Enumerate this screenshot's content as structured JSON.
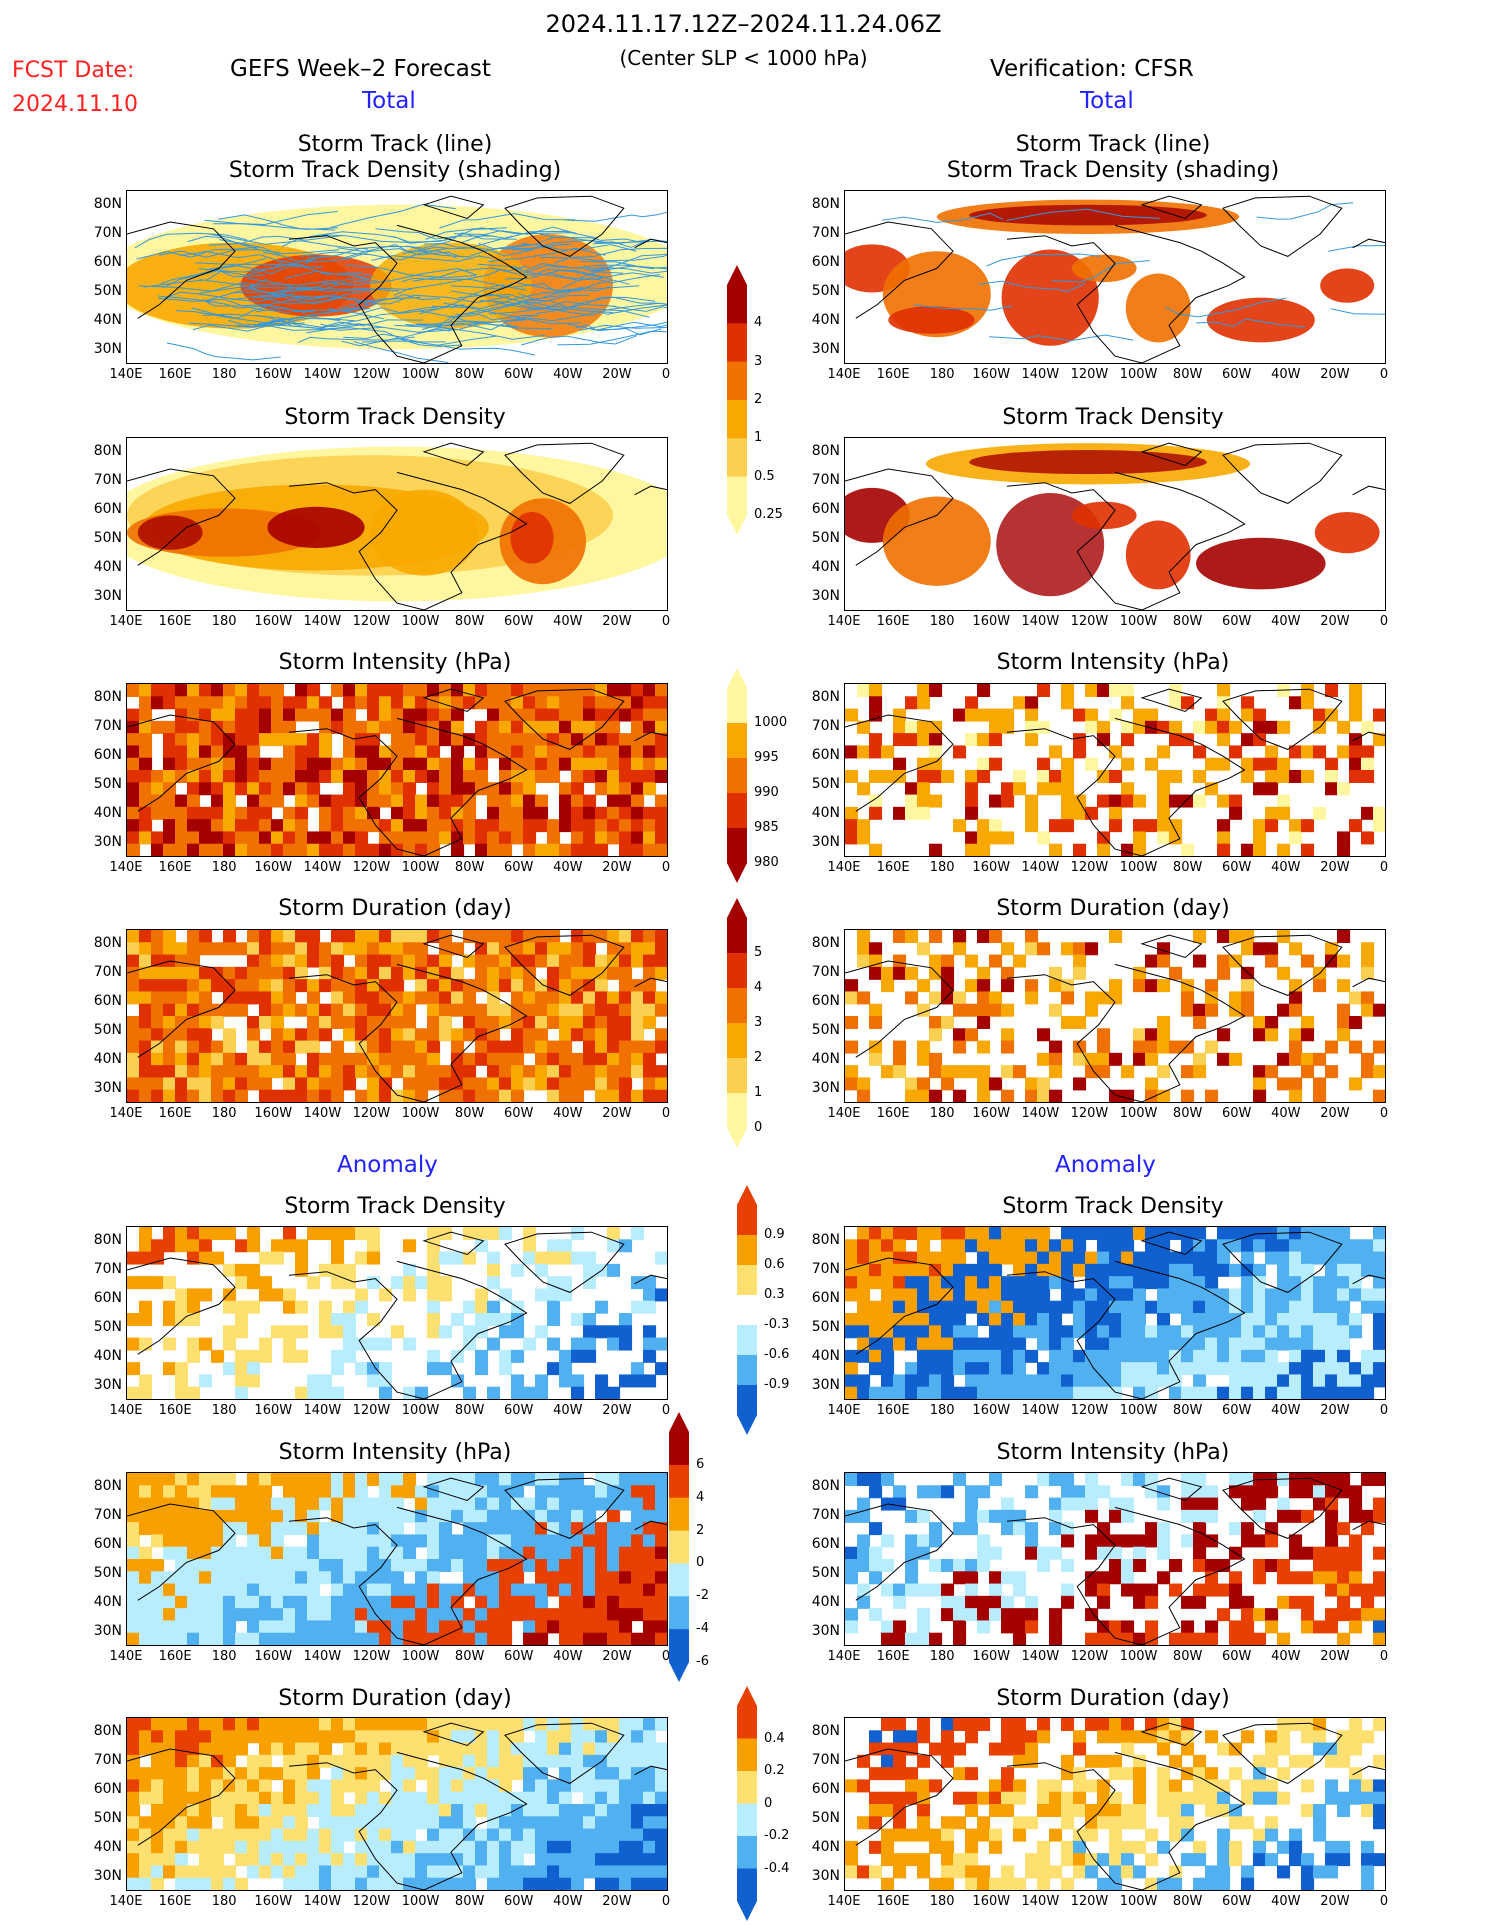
{
  "header": {
    "period": "2024.11.17.12Z–2024.11.24.06Z",
    "criterion": "(Center SLP < 1000 hPa)",
    "fcst_label": "FCST Date:",
    "fcst_date": "2024.11.10",
    "left_title": "GEFS Week–2 Forecast",
    "right_title": "Verification: CFSR",
    "total_label_left": "Total",
    "total_label_right": "Total",
    "anomaly_label_left": "Anomaly",
    "anomaly_label_right": "Anomaly"
  },
  "panels": {
    "t1_left_a": "Storm Track (line)",
    "t1_left_b": "Storm Track Density (shading)",
    "t1_right_a": "Storm Track (line)",
    "t1_right_b": "Storm Track Density (shading)",
    "t2_left": "Storm Track Density",
    "t2_right": "Storm Track Density",
    "t3_left": "Storm Intensity (hPa)",
    "t3_right": "Storm Intensity (hPa)",
    "t4_left": "Storm Duration (day)",
    "t4_right": "Storm Duration (day)",
    "a1_left": "Storm Track Density",
    "a1_right": "Storm Track Density",
    "a2_left": "Storm Intensity (hPa)",
    "a2_right": "Storm Intensity (hPa)",
    "a3_left": "Storm Duration (day)",
    "a3_right": "Storm Duration (day)"
  },
  "axes": {
    "lat_labels": [
      "80N",
      "70N",
      "60N",
      "50N",
      "40N",
      "30N"
    ],
    "lon_labels": [
      "140E",
      "160E",
      "180",
      "160W",
      "140W",
      "120W",
      "100W",
      "80W",
      "60W",
      "40W",
      "20W",
      "0"
    ]
  },
  "colorbars": {
    "density": {
      "ticks": [
        "4",
        "3",
        "2",
        "1",
        "0.5",
        "0.25"
      ],
      "colors": [
        "#a50000",
        "#e03000",
        "#f07000",
        "#f8a800",
        "#fbd050",
        "#fff6a0"
      ]
    },
    "intensity": {
      "ticks": [
        "1000",
        "995",
        "990",
        "985",
        "980"
      ],
      "colors": [
        "#fff6a0",
        "#f8a800",
        "#f07000",
        "#e03000",
        "#a50000"
      ]
    },
    "duration": {
      "ticks": [
        "5",
        "4",
        "3",
        "2",
        "1",
        "0"
      ],
      "colors": [
        "#a50000",
        "#e03000",
        "#f07000",
        "#f8a800",
        "#fbd050",
        "#fff6a0"
      ]
    },
    "anom_density": {
      "ticks": [
        "0.9",
        "0.6",
        "0.3",
        "-0.3",
        "-0.6",
        "-0.9"
      ],
      "colors": [
        "#e84000",
        "#f8a000",
        "#fde070",
        "#ffffff",
        "#b8ecff",
        "#50b0f0",
        "#1060d0"
      ]
    },
    "anom_intensity": {
      "ticks": [
        "6",
        "4",
        "2",
        "0",
        "-2",
        "-4",
        "-6"
      ],
      "colors": [
        "#a50000",
        "#e84000",
        "#f8a000",
        "#fde070",
        "#b8ecff",
        "#50b0f0",
        "#1060d0"
      ]
    },
    "anom_duration": {
      "ticks": [
        "0.4",
        "0.2",
        "0",
        "-0.2",
        "-0.4"
      ],
      "colors": [
        "#e84000",
        "#f8a000",
        "#fde070",
        "#b8ecff",
        "#50b0f0",
        "#1060d0"
      ]
    }
  },
  "colors": {
    "fcst": "#ff2020",
    "section_label": "#2222ff",
    "track_line": "#3399dd"
  }
}
